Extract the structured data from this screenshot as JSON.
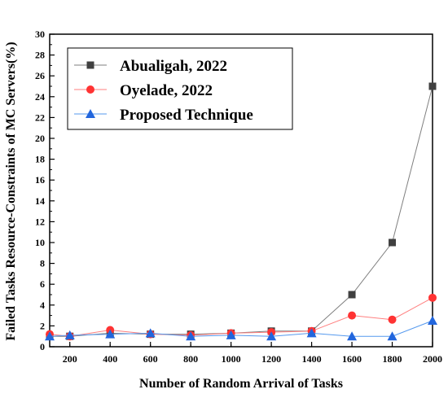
{
  "chart_data": {
    "type": "line",
    "title": "",
    "xlabel": "Number of Random Arrival of Tasks",
    "ylabel": "Failed Tasks Resource-Constraints of MC Servers(%)",
    "x": [
      100,
      200,
      400,
      600,
      800,
      1000,
      1200,
      1400,
      1600,
      1800,
      2000
    ],
    "xlim": [
      100,
      2000
    ],
    "ylim": [
      0,
      30
    ],
    "x_ticks": [
      200,
      400,
      600,
      800,
      1000,
      1200,
      1400,
      1600,
      1800,
      2000
    ],
    "x_tick_labels": [
      "200",
      "400",
      "600",
      "800",
      "1000",
      "1200",
      "1400",
      "1600",
      "1800",
      "2000"
    ],
    "y_ticks": [
      0,
      2,
      4,
      6,
      8,
      10,
      12,
      14,
      16,
      18,
      20,
      22,
      24,
      26,
      28,
      30
    ],
    "y_tick_labels": [
      "0",
      "2",
      "4",
      "6",
      "8",
      "10",
      "12",
      "14",
      "16",
      "18",
      "20",
      "22",
      "24",
      "26",
      "28",
      "30"
    ],
    "grid": false,
    "legend_position": "top-left",
    "series": [
      {
        "name": "Abualigah, 2022",
        "color": "#404040",
        "line_color": "#7f7f7f",
        "marker": "square",
        "values": [
          1.0,
          1.0,
          1.3,
          1.2,
          1.2,
          1.3,
          1.5,
          1.5,
          5.0,
          10.0,
          25.0
        ]
      },
      {
        "name": "Oyelade, 2022",
        "color": "#ff3333",
        "line_color": "#ff7f7f",
        "marker": "circle",
        "values": [
          1.2,
          1.0,
          1.6,
          1.2,
          1.1,
          1.3,
          1.4,
          1.5,
          3.0,
          2.6,
          4.7
        ]
      },
      {
        "name": "Proposed Technique",
        "color": "#2266dd",
        "line_color": "#5599ee",
        "marker": "triangle",
        "values": [
          1.0,
          1.1,
          1.2,
          1.3,
          1.0,
          1.1,
          1.0,
          1.3,
          1.0,
          1.0,
          2.5
        ]
      }
    ]
  }
}
